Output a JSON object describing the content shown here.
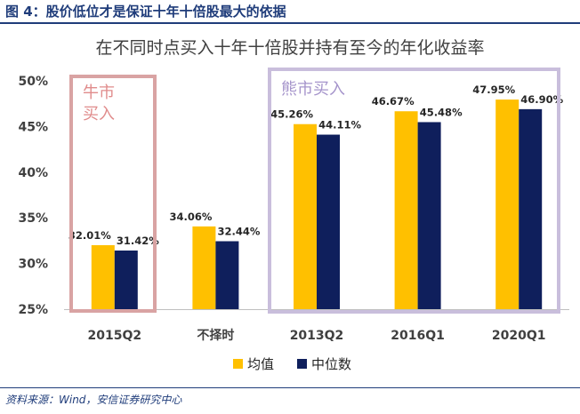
{
  "figure": {
    "title": "图 4：股价低位才是保证十年十倍股最大的依据",
    "source": "资料来源：Wind，安信证券研究中心"
  },
  "colors": {
    "brand": "#1f3c7a",
    "mean": "#FFC000",
    "median": "#0F1F5C",
    "bull_box": "#D9A3A3",
    "bull_text": "#E08C8C",
    "bear_box": "#C9BEDC",
    "bear_text": "#A594CB"
  },
  "chart_data": {
    "type": "bar",
    "title": "在不同时点买入十年十倍股并持有至今的年化收益率",
    "categories": [
      "2015Q2",
      "不择时",
      "2013Q2",
      "2016Q1",
      "2020Q1"
    ],
    "series": [
      {
        "name": "均值",
        "values": [
          32.01,
          34.06,
          45.26,
          46.67,
          47.95
        ],
        "labels": [
          "32.01%",
          "34.06%",
          "45.26%",
          "46.67%",
          "47.95%"
        ]
      },
      {
        "name": "中位数",
        "values": [
          31.42,
          32.44,
          44.11,
          45.48,
          46.9
        ],
        "labels": [
          "31.42%",
          "32.44%",
          "44.11%",
          "45.48%",
          "46.90%"
        ]
      }
    ],
    "ylim": [
      25,
      50
    ],
    "yticks": [
      25,
      30,
      35,
      40,
      45,
      50
    ],
    "ytick_labels": [
      "25%",
      "30%",
      "35%",
      "40%",
      "45%",
      "50%"
    ],
    "grid": false,
    "legend_position": "bottom",
    "annotations": [
      {
        "text": "牛市买入",
        "lines": [
          "牛市",
          "买入"
        ],
        "covers": [
          "2015Q2"
        ]
      },
      {
        "text": "熊市买入",
        "lines": [
          "熊市买入"
        ],
        "covers": [
          "2013Q2",
          "2016Q1",
          "2020Q1"
        ]
      }
    ]
  }
}
